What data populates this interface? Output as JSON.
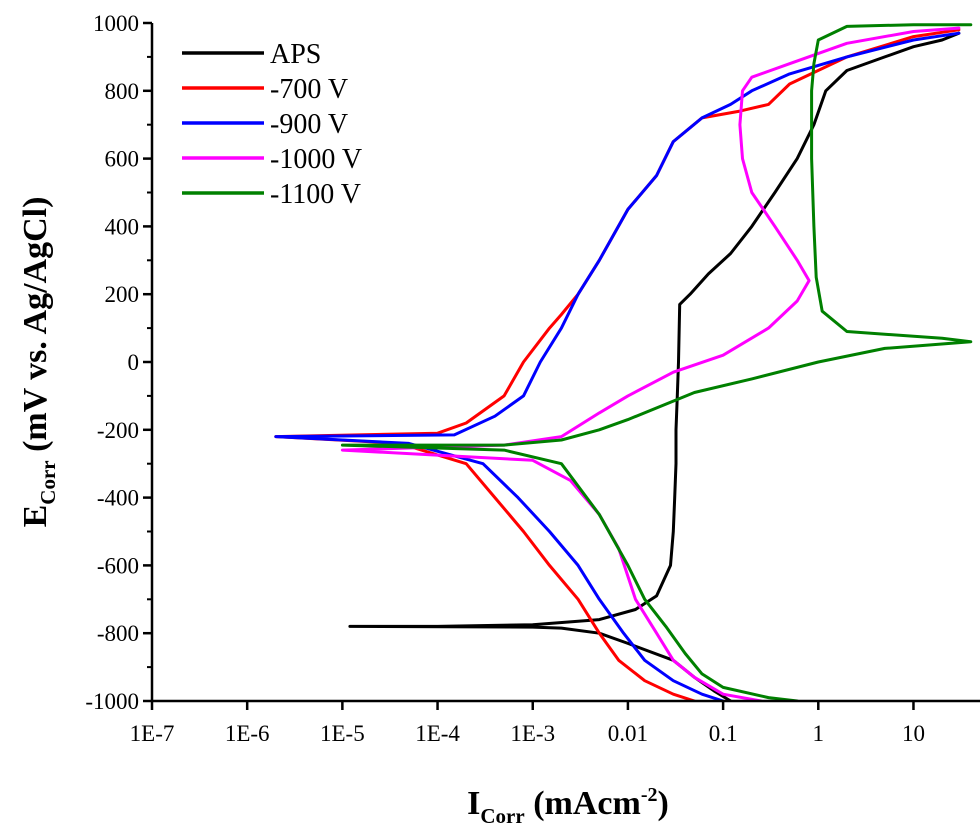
{
  "chart_data": {
    "type": "line",
    "x_scale": "log",
    "xlim": [
      "1E-7",
      "50"
    ],
    "ylim": [
      -1000,
      1000
    ],
    "grid": false,
    "legend_position": "top-left",
    "xlabel": {
      "main": "I",
      "sub": "Corr",
      "unit_prefix": " (mAcm",
      "unit_sup": "-2",
      "unit_suffix": ")"
    },
    "ylabel": {
      "main": "E",
      "sub": "Corr",
      "rest": " (mV vs. Ag/AgCl)"
    },
    "x_ticks": [
      {
        "value": 1e-07,
        "label": "1E-7"
      },
      {
        "value": 1e-06,
        "label": "1E-6"
      },
      {
        "value": 1e-05,
        "label": "1E-5"
      },
      {
        "value": 0.0001,
        "label": "1E-4"
      },
      {
        "value": 0.001,
        "label": "1E-3"
      },
      {
        "value": 0.01,
        "label": "0.01"
      },
      {
        "value": 0.1,
        "label": "0.1"
      },
      {
        "value": 1,
        "label": "1"
      },
      {
        "value": 10,
        "label": "10"
      }
    ],
    "y_ticks": [
      {
        "value": 1000,
        "label": "1000"
      },
      {
        "value": 800,
        "label": "800"
      },
      {
        "value": 600,
        "label": "600"
      },
      {
        "value": 400,
        "label": "400"
      },
      {
        "value": 200,
        "label": "200"
      },
      {
        "value": 0,
        "label": "0"
      },
      {
        "value": -200,
        "label": "-200"
      },
      {
        "value": -400,
        "label": "-400"
      },
      {
        "value": -600,
        "label": "-600"
      },
      {
        "value": -800,
        "label": "-800"
      },
      {
        "value": -1000,
        "label": "-1000"
      }
    ],
    "series": [
      {
        "name": "APS",
        "color": "#000000",
        "x": [
          0.12,
          0.08,
          0.05,
          0.03,
          0.01,
          0.005,
          0.002,
          0.001,
          1.2e-05,
          0.0001,
          0.001,
          0.005,
          0.012,
          0.02,
          0.028,
          0.03,
          0.031,
          0.032,
          0.032,
          0.033,
          0.034,
          0.035,
          0.045,
          0.07,
          0.12,
          0.2,
          0.35,
          0.6,
          0.9,
          1.2,
          2,
          5,
          10,
          20,
          30
        ],
        "y": [
          -1000,
          -970,
          -930,
          -880,
          -830,
          -800,
          -785,
          -782,
          -780,
          -780,
          -775,
          -760,
          -730,
          -690,
          -600,
          -500,
          -400,
          -300,
          -200,
          -100,
          0,
          170,
          200,
          260,
          320,
          400,
          500,
          600,
          700,
          800,
          860,
          900,
          930,
          950,
          970
        ]
      },
      {
        "name": "-700 V",
        "color": "#ff0000",
        "x": [
          0.05,
          0.03,
          0.015,
          0.008,
          0.005,
          0.003,
          0.0015,
          0.0008,
          0.0004,
          0.0002,
          4e-05,
          2e-06,
          0.0001,
          0.0002,
          0.0005,
          0.0008,
          0.0015,
          0.002,
          0.003,
          0.005,
          0.01,
          0.02,
          0.03,
          0.06,
          0.15,
          0.3,
          0.5,
          2,
          10,
          30
        ],
        "y": [
          -1000,
          -980,
          -940,
          -880,
          -800,
          -700,
          -600,
          -500,
          -400,
          -300,
          -240,
          -220,
          -210,
          -180,
          -100,
          0,
          100,
          140,
          200,
          300,
          450,
          550,
          650,
          720,
          740,
          760,
          820,
          900,
          960,
          980
        ]
      },
      {
        "name": "-900 V",
        "color": "#0000ff",
        "x": [
          0.1,
          0.06,
          0.03,
          0.015,
          0.009,
          0.005,
          0.003,
          0.0015,
          0.0007,
          0.0003,
          5e-05,
          2e-06,
          0.00015,
          0.0004,
          0.0008,
          0.0012,
          0.002,
          0.003,
          0.005,
          0.01,
          0.02,
          0.03,
          0.06,
          0.12,
          0.2,
          0.5,
          2,
          10,
          30
        ],
        "y": [
          -1000,
          -980,
          -940,
          -880,
          -800,
          -700,
          -600,
          -500,
          -400,
          -300,
          -240,
          -220,
          -215,
          -160,
          -100,
          0,
          100,
          200,
          300,
          450,
          550,
          650,
          720,
          760,
          800,
          850,
          900,
          950,
          970
        ]
      },
      {
        "name": "-1000 V",
        "color": "#ff00ff",
        "x": [
          0.25,
          0.1,
          0.05,
          0.03,
          0.02,
          0.012,
          0.008,
          0.005,
          0.0025,
          0.001,
          1e-05,
          0.0005,
          0.002,
          0.005,
          0.01,
          0.03,
          0.1,
          0.3,
          0.6,
          0.8,
          0.6,
          0.35,
          0.2,
          0.16,
          0.15,
          0.16,
          0.2,
          0.5,
          2,
          10,
          30
        ],
        "y": [
          -1000,
          -980,
          -930,
          -880,
          -800,
          -700,
          -550,
          -450,
          -350,
          -290,
          -260,
          -245,
          -220,
          -150,
          -100,
          -30,
          20,
          100,
          180,
          240,
          300,
          400,
          500,
          600,
          700,
          800,
          840,
          880,
          940,
          975,
          985
        ]
      },
      {
        "name": "-1100 V",
        "color": "#008000",
        "x": [
          0.6,
          0.3,
          0.1,
          0.06,
          0.04,
          0.025,
          0.015,
          0.01,
          0.005,
          0.002,
          0.0005,
          1e-05,
          0.0005,
          0.002,
          0.005,
          0.01,
          0.05,
          0.2,
          1,
          5,
          40,
          20,
          2,
          1.1,
          0.95,
          0.9,
          0.85,
          0.85,
          0.9,
          1,
          2,
          10,
          40
        ],
        "y": [
          -1000,
          -990,
          -960,
          -920,
          -860,
          -780,
          -700,
          -600,
          -450,
          -300,
          -260,
          -245,
          -245,
          -230,
          -200,
          -170,
          -90,
          -50,
          0,
          40,
          60,
          70,
          90,
          150,
          250,
          400,
          600,
          800,
          880,
          950,
          990,
          995,
          995
        ]
      }
    ]
  }
}
